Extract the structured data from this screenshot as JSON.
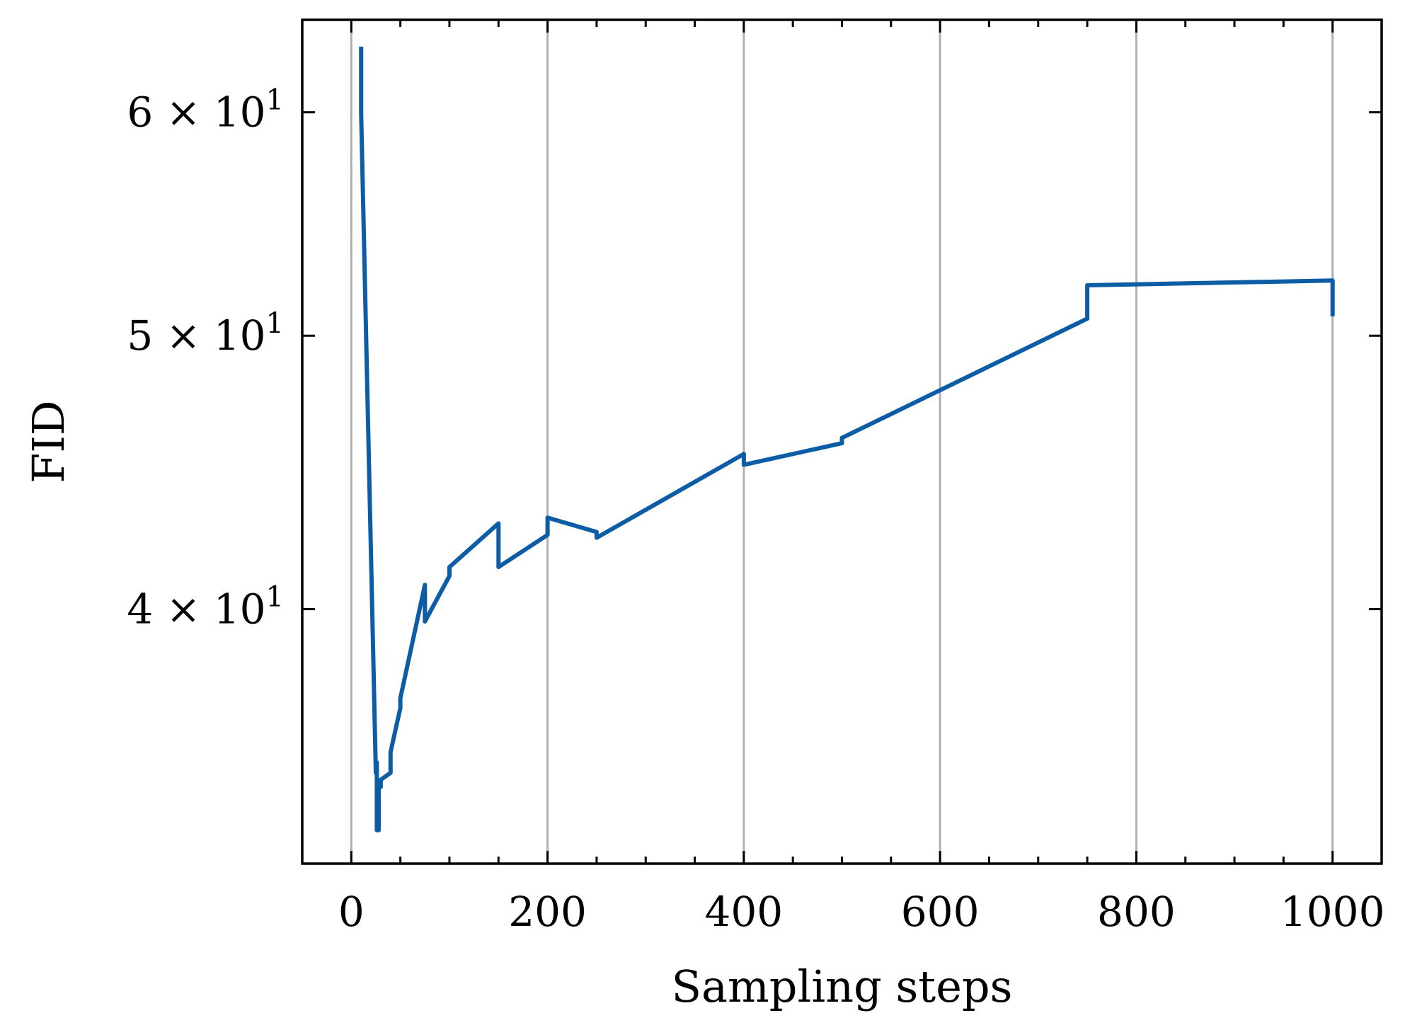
{
  "chart_data": {
    "type": "line",
    "title": "",
    "xlabel": "Sampling steps",
    "ylabel": "FID",
    "xlim": [
      -50,
      1050
    ],
    "ylim": [
      32.5,
      64.7
    ],
    "yscale": "log",
    "grid": "x-major",
    "line_color": "#0c5da5",
    "x_ticks": [
      0,
      200,
      400,
      600,
      800,
      1000
    ],
    "x_tick_labels": [
      "0",
      "200",
      "400",
      "600",
      "800",
      "1000"
    ],
    "x_minor_ticks": [
      50,
      100,
      150,
      250,
      300,
      350,
      450,
      500,
      550,
      650,
      700,
      750,
      850,
      900,
      950
    ],
    "y_ticks": [
      40,
      50,
      60
    ],
    "y_tick_labels": [
      {
        "mantissa": "4",
        "times": "×",
        "base": "10",
        "exp": "1"
      },
      {
        "mantissa": "5",
        "times": "×",
        "base": "10",
        "exp": "1"
      },
      {
        "mantissa": "6",
        "times": "×",
        "base": "10",
        "exp": "1"
      }
    ],
    "series": [
      {
        "x": [
          10,
          10,
          25,
          25,
          26,
          26,
          28,
          28,
          30,
          30,
          40,
          40,
          50,
          50,
          75,
          75,
          100,
          100,
          150,
          150,
          200,
          200,
          250,
          250,
          400,
          400,
          500,
          500,
          750,
          750,
          1000,
          1000
        ],
        "y": [
          63.3,
          60.0,
          35.0,
          35.3,
          35.3,
          33.4,
          33.4,
          34.6,
          34.6,
          34.8,
          35.0,
          35.6,
          36.9,
          37.2,
          40.8,
          39.6,
          41.1,
          41.4,
          42.9,
          41.4,
          42.5,
          43.1,
          42.6,
          42.4,
          45.4,
          45.0,
          45.8,
          46.0,
          50.7,
          52.1,
          52.3,
          50.8
        ]
      }
    ]
  }
}
